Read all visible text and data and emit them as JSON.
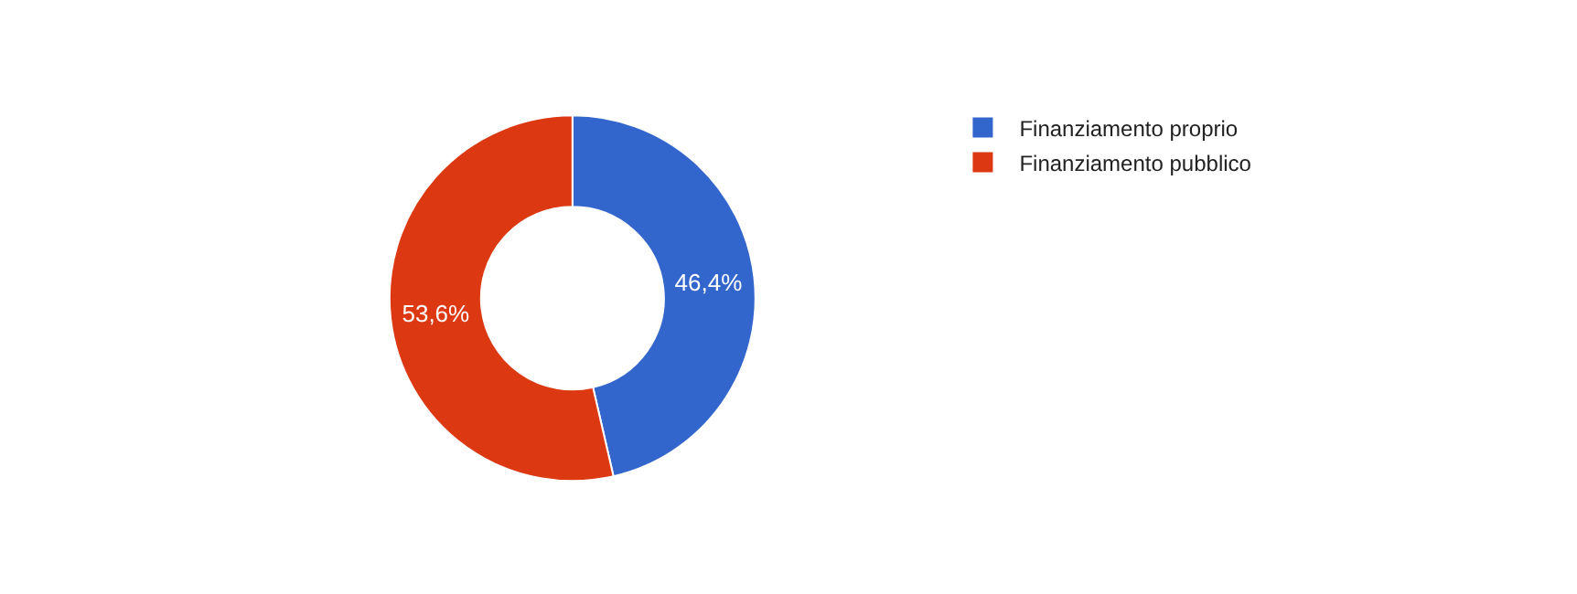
{
  "chart_data": {
    "type": "donut",
    "categories": [
      "Finanziamento proprio",
      "Finanziamento pubblico"
    ],
    "values": [
      46.4,
      53.6
    ],
    "colors": [
      "#3366cc",
      "#dc3912"
    ],
    "value_labels": [
      "46,4%",
      "53,6%"
    ],
    "legend": "top right"
  }
}
